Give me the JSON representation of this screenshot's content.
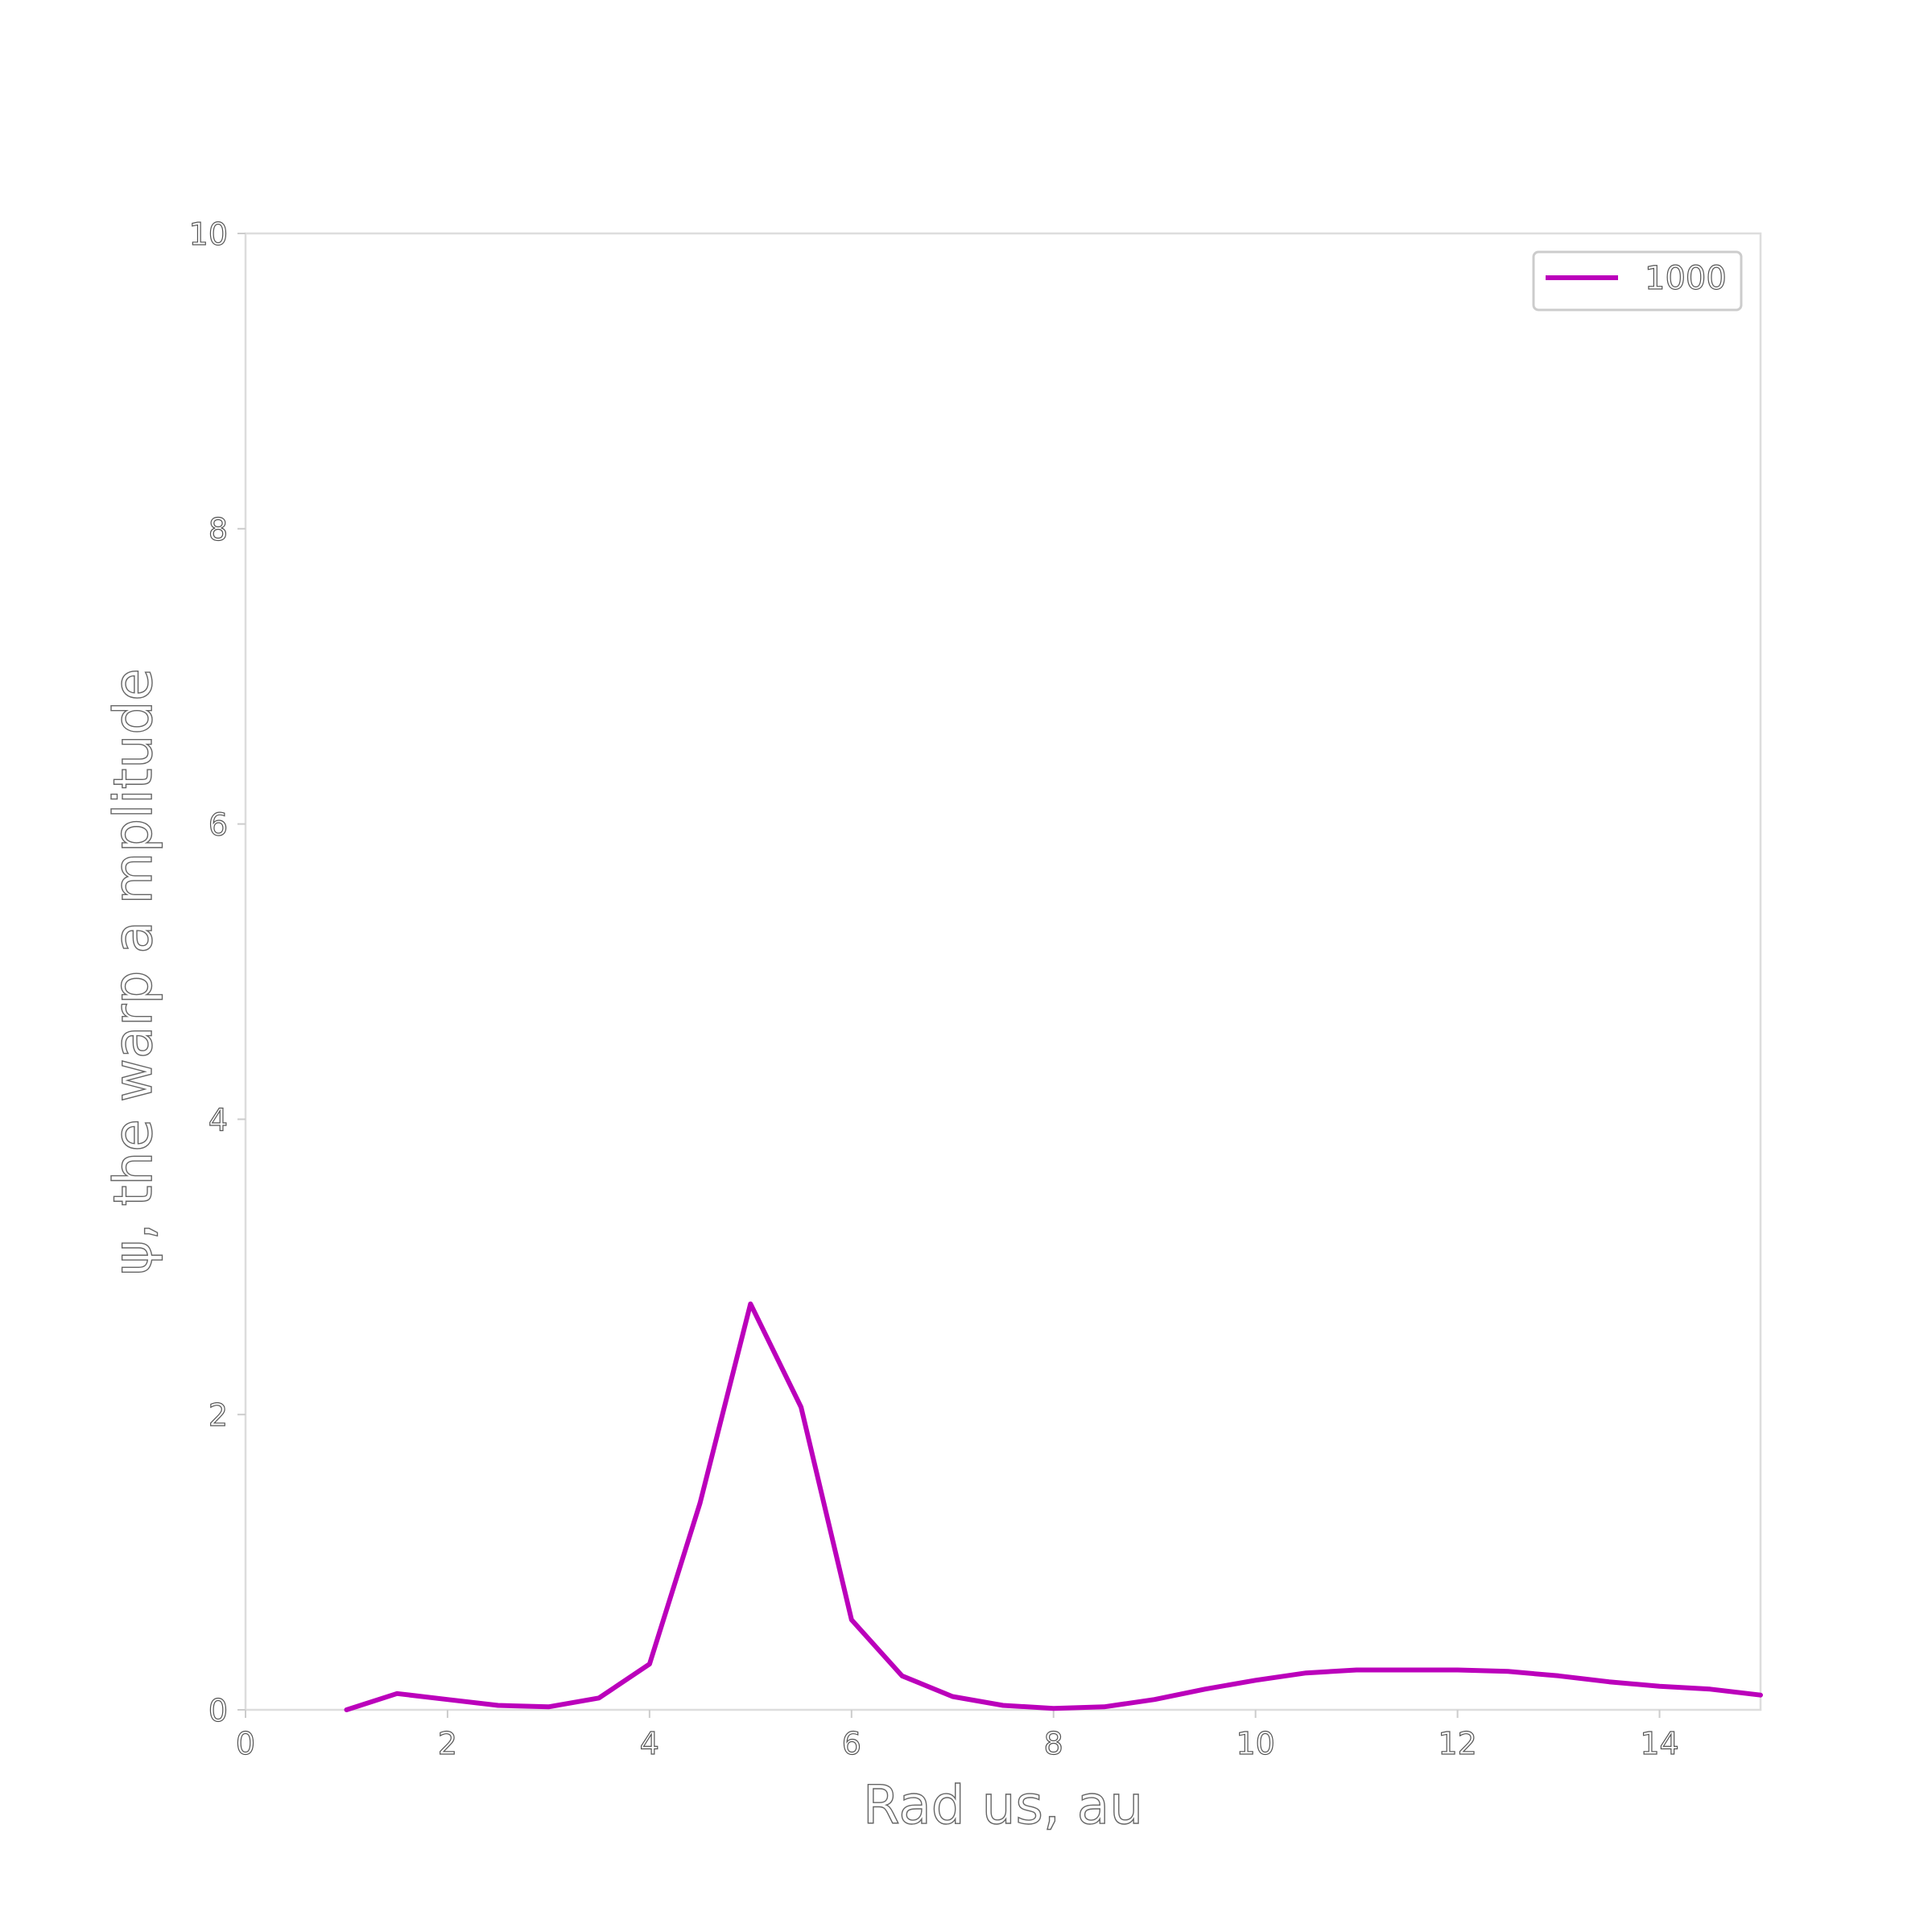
{
  "chart_data": {
    "type": "line",
    "xlabel": "Rad us, au",
    "ylabel": "ψ, the warp a mplitude",
    "xlim": [
      0,
      15
    ],
    "ylim": [
      0,
      10
    ],
    "xticks": [
      0,
      2,
      4,
      6,
      8,
      10,
      12,
      14
    ],
    "yticks": [
      0,
      2,
      4,
      6,
      8,
      10
    ],
    "grid": false,
    "legend_position": "top-right",
    "series": [
      {
        "name": "1000",
        "color": "#bb00bb",
        "x": [
          1.0,
          1.5,
          2.0,
          2.5,
          3.0,
          3.5,
          4.0,
          4.5,
          5.0,
          5.5,
          6.0,
          6.5,
          7.0,
          7.5,
          8.0,
          8.5,
          9.0,
          9.5,
          10.0,
          10.5,
          11.0,
          11.5,
          12.0,
          12.5,
          13.0,
          13.5,
          14.0,
          14.5,
          15.0
        ],
        "y": [
          0.0,
          0.11,
          0.07,
          0.03,
          0.02,
          0.08,
          0.31,
          1.4,
          2.75,
          2.05,
          0.61,
          0.23,
          0.09,
          0.03,
          0.01,
          0.02,
          0.07,
          0.14,
          0.2,
          0.25,
          0.27,
          0.27,
          0.27,
          0.26,
          0.23,
          0.19,
          0.16,
          0.14,
          0.1
        ]
      }
    ]
  }
}
